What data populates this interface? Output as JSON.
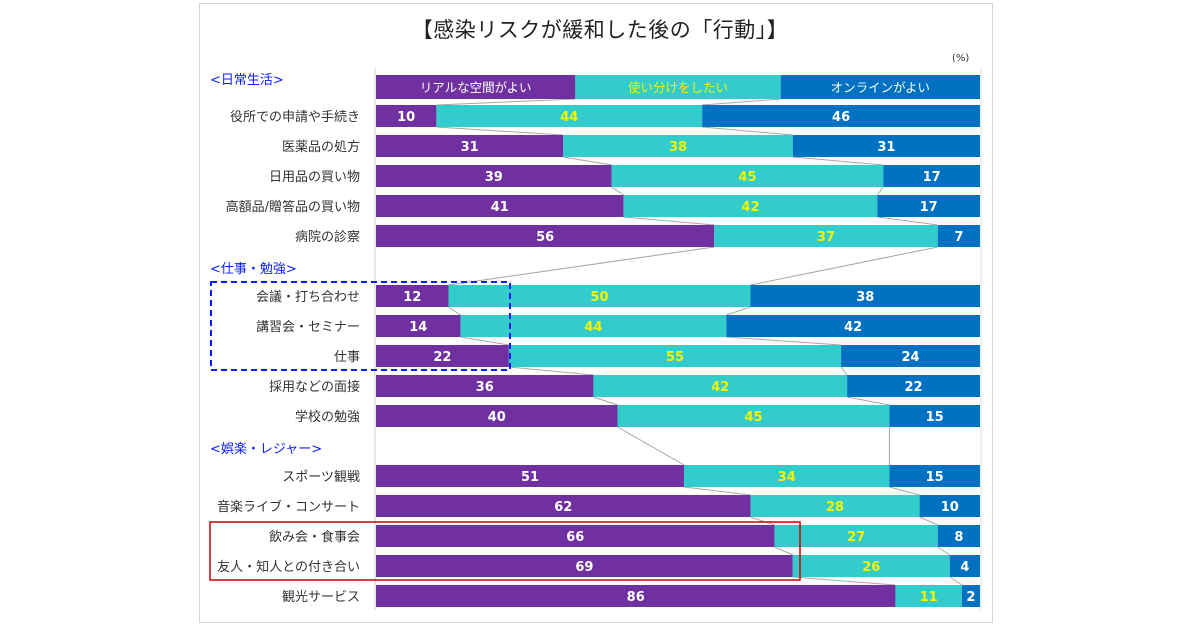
{
  "chart_data": {
    "type": "bar",
    "stacked": true,
    "orientation": "horizontal",
    "title": "【感染リスクが緩和した後の「行動」】",
    "unit_label": "(%)",
    "xlim": [
      0,
      100
    ],
    "legend_placement": "top",
    "series": [
      {
        "name": "リアルな空間がよい",
        "color": "#7030a0",
        "label_color": "#ffffff"
      },
      {
        "name": "使い分けをしたい",
        "color": "#33cccc",
        "label_color": "#f4f400"
      },
      {
        "name": "オンラインがよい",
        "color": "#0070c0",
        "label_color": "#ffffff"
      }
    ],
    "sections": [
      {
        "label": "<日常生活>",
        "rows": [
          {
            "category": "役所での申請や手続き",
            "values": [
              10,
              44,
              46
            ]
          },
          {
            "category": "医薬品の処方",
            "values": [
              31,
              38,
              31
            ]
          },
          {
            "category": "日用品の買い物",
            "values": [
              39,
              45,
              17
            ]
          },
          {
            "category": "高額品/贈答品の買い物",
            "values": [
              41,
              42,
              17
            ]
          },
          {
            "category": "病院の診察",
            "values": [
              56,
              37,
              7
            ]
          }
        ]
      },
      {
        "label": "<仕事・勉強>",
        "rows": [
          {
            "category": "会議・打ち合わせ",
            "values": [
              12,
              50,
              38
            ]
          },
          {
            "category": "講習会・セミナー",
            "values": [
              14,
              44,
              42
            ]
          },
          {
            "category": "仕事",
            "values": [
              22,
              55,
              24
            ]
          },
          {
            "category": "採用などの面接",
            "values": [
              36,
              42,
              22
            ]
          },
          {
            "category": "学校の勉強",
            "values": [
              40,
              45,
              15
            ]
          }
        ]
      },
      {
        "label": "<娯楽・レジャー>",
        "rows": [
          {
            "category": "スポーツ観戦",
            "values": [
              51,
              34,
              15
            ]
          },
          {
            "category": "音楽ライブ・コンサート",
            "values": [
              62,
              28,
              10
            ]
          },
          {
            "category": "飲み会・食事会",
            "values": [
              66,
              27,
              8
            ]
          },
          {
            "category": "友人・知人との付き合い",
            "values": [
              69,
              26,
              4
            ]
          },
          {
            "category": "観光サービス",
            "values": [
              86,
              11,
              2
            ]
          }
        ]
      }
    ],
    "annotations": [
      {
        "type": "dashed-box",
        "color": "#0a1cff",
        "covers": [
          "会議・打ち合わせ",
          "講習会・セミナー",
          "仕事"
        ],
        "series_covered": "リアルな空間がよい"
      },
      {
        "type": "solid-box",
        "color": "#cc0000",
        "covers": [
          "飲み会・食事会",
          "友人・知人との付き合い"
        ],
        "series_covered": "リアルな空間がよい"
      }
    ]
  }
}
